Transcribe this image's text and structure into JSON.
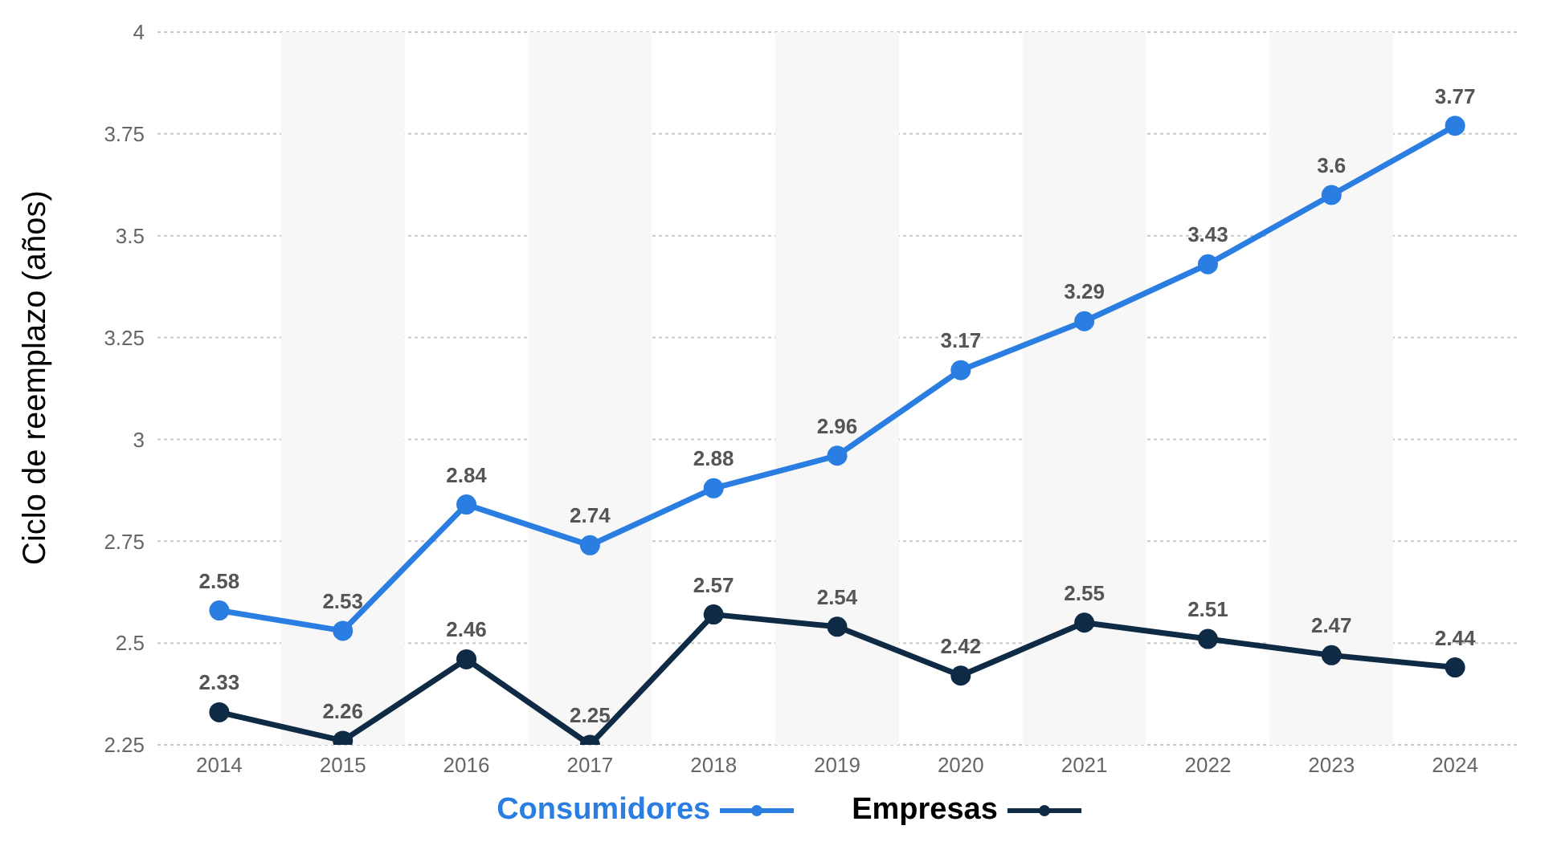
{
  "chart_data": {
    "type": "line",
    "ylabel": "Ciclo de reemplazo (años)",
    "categories": [
      "2014",
      "2015",
      "2016",
      "2017",
      "2018",
      "2019",
      "2020",
      "2021",
      "2022",
      "2023",
      "2024"
    ],
    "series": [
      {
        "name": "Consumidores",
        "color": "#2a7de1",
        "values": [
          2.58,
          2.53,
          2.84,
          2.74,
          2.88,
          2.96,
          3.17,
          3.29,
          3.43,
          3.6,
          3.77
        ]
      },
      {
        "name": "Empresas",
        "color": "#0f2a44",
        "values": [
          2.33,
          2.26,
          2.46,
          2.25,
          2.57,
          2.54,
          2.42,
          2.55,
          2.51,
          2.47,
          2.44
        ]
      }
    ],
    "ylim": [
      2.25,
      4
    ],
    "yticks": [
      2.25,
      2.5,
      2.75,
      3,
      3.25,
      3.5,
      3.75,
      4
    ],
    "bands": [
      {
        "axis": "x",
        "from": "2015",
        "to": "2015",
        "color": "#f7f7f7"
      },
      {
        "axis": "x",
        "from": "2017",
        "to": "2017",
        "color": "#f7f7f7"
      },
      {
        "axis": "x",
        "from": "2019",
        "to": "2019",
        "color": "#f7f7f7"
      },
      {
        "axis": "x",
        "from": "2021",
        "to": "2021",
        "color": "#f7f7f7"
      },
      {
        "axis": "x",
        "from": "2023",
        "to": "2023",
        "color": "#f7f7f7"
      }
    ],
    "grid": "y",
    "legend": "bottom",
    "marker": "circle",
    "line_style": "solid",
    "data_labels": true
  }
}
